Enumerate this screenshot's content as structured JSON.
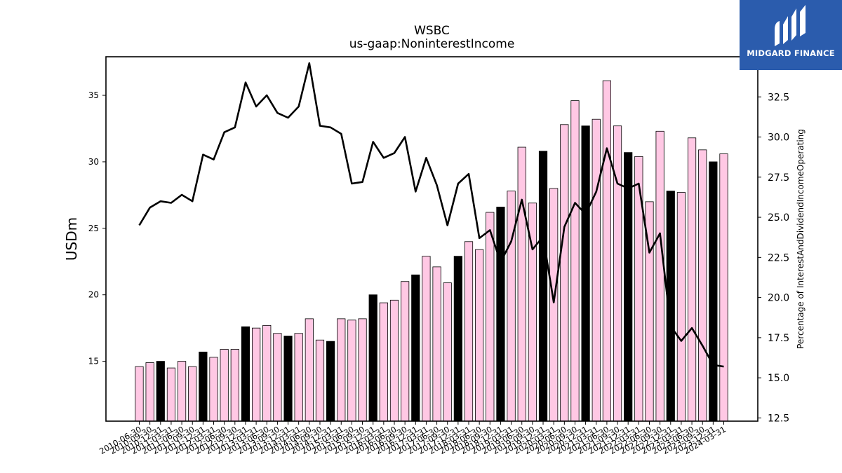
{
  "brand": {
    "name": "MIDGARD FINANCE",
    "bg_color": "#2b5cad",
    "text_color": "#ffffff",
    "icon": "midgard-logo-mark"
  },
  "chart_data": {
    "type": "bar",
    "title": "WSBC",
    "subtitle": "us-gaap:NoninterestIncome",
    "ylabel": "USDm",
    "y2label": "Percentage of InterestAndDividendIncomeOperating",
    "ylim": [
      10.5,
      37.9
    ],
    "y2lim": [
      12.3,
      35.0
    ],
    "yticks": [
      15,
      20,
      25,
      30,
      35
    ],
    "y2ticks": [
      "12.5",
      "15.0",
      "17.5",
      "20.0",
      "22.5",
      "25.0",
      "27.5",
      "30.0",
      "32.5"
    ],
    "bar_color_default": "#ffc8e4",
    "bar_color_q4": "#000000",
    "line_color": "#000000",
    "categories": [
      "2010-06-30",
      "2010-09-30",
      "2010-12-31",
      "2011-03-31",
      "2011-06-30",
      "2011-09-30",
      "2011-12-31",
      "2012-03-31",
      "2012-06-30",
      "2012-09-30",
      "2012-12-31",
      "2013-03-31",
      "2013-06-30",
      "2013-09-30",
      "2013-12-31",
      "2014-03-31",
      "2014-06-30",
      "2014-09-30",
      "2014-12-31",
      "2015-03-31",
      "2015-06-30",
      "2015-09-30",
      "2015-12-31",
      "2016-03-31",
      "2016-06-30",
      "2016-09-30",
      "2016-12-31",
      "2017-03-31",
      "2017-06-30",
      "2017-09-30",
      "2017-12-31",
      "2018-03-31",
      "2018-06-30",
      "2018-09-30",
      "2018-12-31",
      "2019-03-31",
      "2019-06-30",
      "2019-09-30",
      "2019-12-31",
      "2020-03-31",
      "2020-06-30",
      "2020-09-30",
      "2020-12-31",
      "2021-03-31",
      "2021-06-30",
      "2021-09-30",
      "2021-12-31",
      "2022-03-31",
      "2022-06-30",
      "2022-09-30",
      "2022-12-31",
      "2023-03-31",
      "2023-06-30",
      "2023-09-30",
      "2023-12-31",
      "2024-03-31"
    ],
    "series": [
      {
        "name": "",
        "type": "bar",
        "values": [
          14.6,
          14.9,
          15.0,
          14.5,
          15.0,
          14.6,
          15.7,
          15.3,
          15.9,
          15.9,
          17.6,
          17.5,
          17.7,
          17.1,
          16.9,
          17.1,
          18.2,
          16.6,
          16.5,
          18.2,
          18.1,
          18.2,
          20.0,
          19.4,
          19.6,
          21.0,
          21.5,
          22.9,
          22.1,
          20.9,
          22.9,
          24.0,
          23.4,
          26.2,
          26.6,
          27.8,
          31.1,
          26.9,
          30.8,
          28.0,
          32.8,
          34.6,
          32.7,
          33.2,
          36.1,
          32.7,
          30.7,
          30.4,
          27.0,
          32.3,
          27.8,
          27.7,
          31.8,
          30.9,
          30.0,
          30.6
        ]
      },
      {
        "name": "",
        "type": "line",
        "axis": "right",
        "values": [
          24.5,
          25.6,
          26.0,
          25.9,
          26.4,
          26.0,
          28.9,
          28.6,
          30.3,
          30.6,
          33.4,
          31.9,
          32.6,
          31.5,
          31.2,
          31.9,
          34.6,
          30.7,
          30.6,
          30.2,
          27.1,
          27.2,
          29.7,
          28.7,
          29.0,
          30.0,
          26.6,
          28.7,
          27.0,
          24.5,
          27.1,
          27.7,
          23.7,
          24.2,
          22.2,
          23.5,
          26.1,
          23.0,
          23.8,
          19.7,
          24.4,
          25.9,
          25.2,
          26.6,
          29.3,
          27.1,
          26.8,
          27.1,
          22.8,
          24.0,
          18.2,
          17.3,
          18.1,
          17.0,
          15.8,
          15.7
        ]
      }
    ]
  }
}
